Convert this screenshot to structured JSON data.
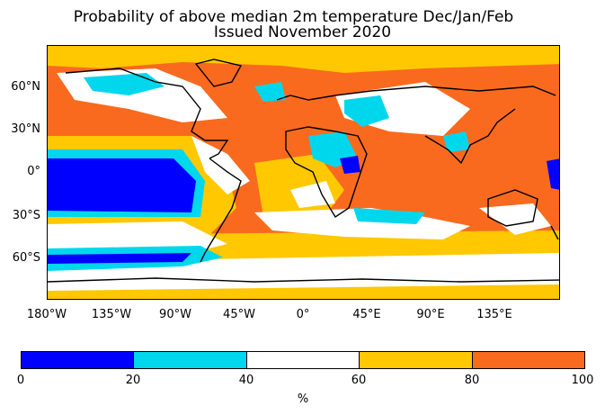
{
  "title_line1": "Probability of above median 2m temperature Dec/Jan/Feb",
  "title_line2": "Issued November 2020",
  "lat_labels": [
    "60°N",
    "30°N",
    "0°",
    "30°S",
    "60°S"
  ],
  "lon_labels": [
    "180°W",
    "135°W",
    "90°W",
    "45°W",
    "0°",
    "45°E",
    "90°E",
    "135°E"
  ],
  "colorbar": {
    "colors": [
      "#0000ff",
      "#00d7ed",
      "#ffffff",
      "#ffc800",
      "#fa6a1e"
    ],
    "ticks": [
      "0",
      "20",
      "40",
      "60",
      "80",
      "100"
    ],
    "unit": "%"
  }
}
